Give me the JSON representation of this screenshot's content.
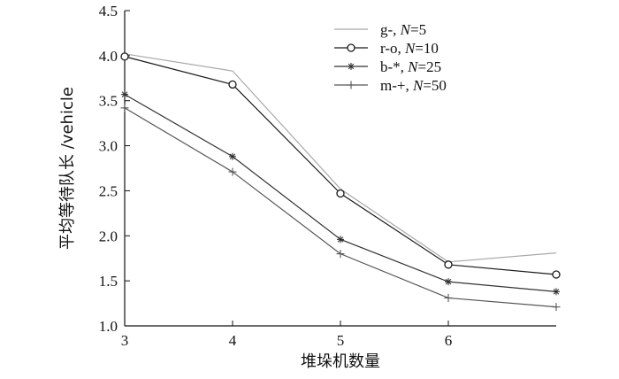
{
  "chart_data": {
    "type": "line",
    "title": "",
    "xlabel": "堆垛机数量",
    "ylabel": "平均等待队长 /vehicle",
    "x": [
      3,
      4,
      5,
      6,
      7
    ],
    "xlim": [
      3,
      7
    ],
    "ylim": [
      1.0,
      4.5
    ],
    "x_ticks": [
      "3",
      "4",
      "5",
      "6"
    ],
    "y_ticks": [
      "1.0",
      "1.5",
      "2.0",
      "2.5",
      "3.0",
      "3.5",
      "4.0",
      "4.5"
    ],
    "grid": false,
    "legend_position": "top-right",
    "series": [
      {
        "name": "g-",
        "n_label": "N",
        "n_value": "=5",
        "marker": "none",
        "color": "#a8a8a8",
        "values": [
          4.02,
          3.83,
          2.52,
          1.71,
          1.81
        ]
      },
      {
        "name": "r-o",
        "n_label": "N",
        "n_value": "=10",
        "marker": "circle",
        "color": "#1a1a1a",
        "values": [
          3.99,
          3.68,
          2.47,
          1.68,
          1.57
        ]
      },
      {
        "name": "b-*",
        "n_label": "N",
        "n_value": "=25",
        "marker": "star",
        "color": "#333333",
        "values": [
          3.57,
          2.88,
          1.96,
          1.49,
          1.38
        ]
      },
      {
        "name": "m-+",
        "n_label": "N",
        "n_value": "=50",
        "marker": "plus",
        "color": "#555555",
        "values": [
          3.42,
          2.71,
          1.8,
          1.31,
          1.21
        ]
      }
    ]
  }
}
